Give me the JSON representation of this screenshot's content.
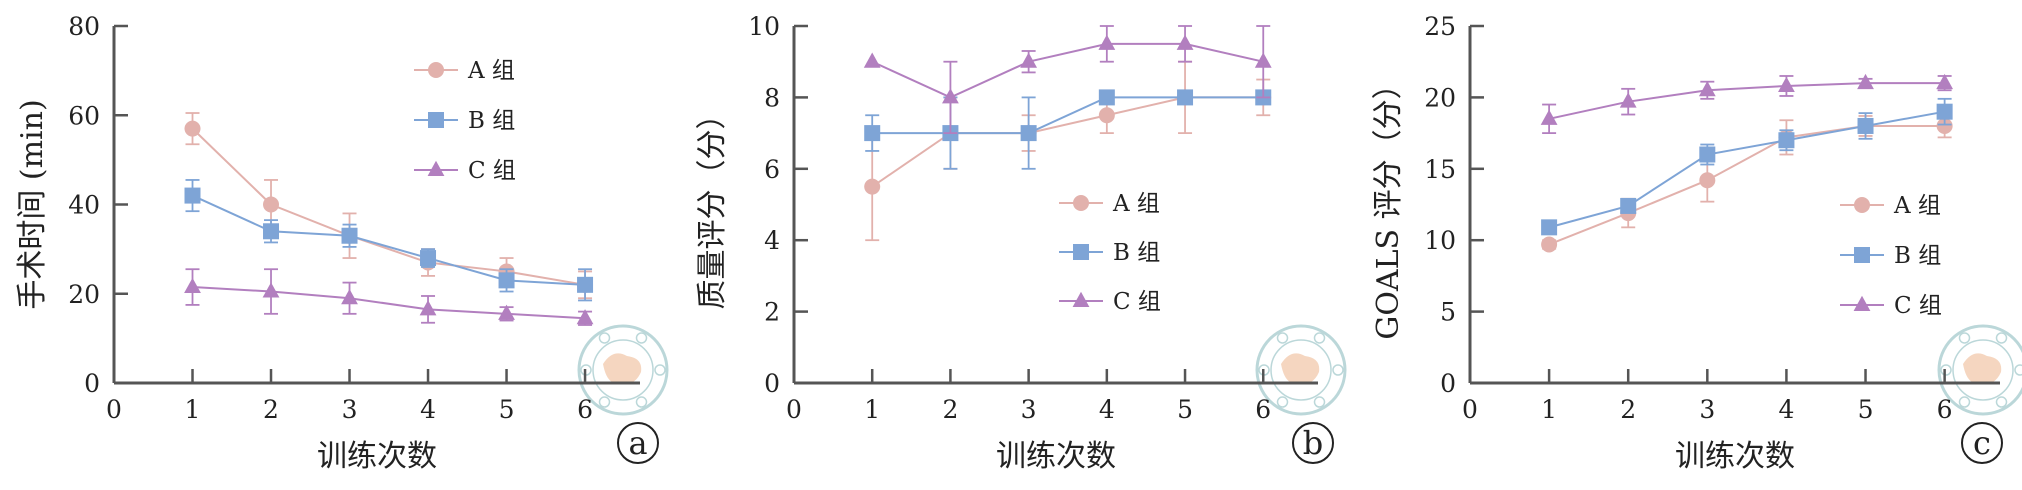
{
  "colors": {
    "A": "#e2b1ac",
    "B": "#7ea4d6",
    "C": "#b27fbf",
    "axis": "#555555",
    "watermark": "#9fc7c9",
    "watermark_center": "#f2c6a6"
  },
  "legend": {
    "A": "A 组",
    "B": "B 组",
    "C": "C 组"
  },
  "chart_data": [
    {
      "type": "line",
      "panel_label": "a",
      "xlabel": "训练次数",
      "ylabel": "手术时间 (min)",
      "xlim": [
        0,
        6.7
      ],
      "ylim": [
        0,
        80
      ],
      "x_ticks": [
        0,
        1,
        2,
        3,
        4,
        5,
        6
      ],
      "y_ticks": [
        0,
        20,
        40,
        60,
        80
      ],
      "legend_position": "top-right",
      "x": [
        1,
        2,
        3,
        4,
        5,
        6
      ],
      "series": [
        {
          "name": "A 组",
          "key": "A",
          "marker": "circle",
          "values": [
            57,
            40,
            33,
            27,
            25,
            22
          ],
          "errors": [
            3.5,
            5.5,
            5,
            3,
            3,
            3
          ]
        },
        {
          "name": "B 组",
          "key": "B",
          "marker": "square",
          "values": [
            42,
            34,
            33,
            28,
            23,
            22
          ],
          "errors": [
            3.5,
            2.5,
            2.5,
            2,
            2.5,
            3.5
          ]
        },
        {
          "name": "C 组",
          "key": "C",
          "marker": "triangle",
          "values": [
            21.5,
            20.5,
            19,
            16.5,
            15.5,
            14.5
          ],
          "errors": [
            4,
            5,
            3.5,
            3,
            1.5,
            1.5
          ]
        }
      ]
    },
    {
      "type": "line",
      "panel_label": "b",
      "xlabel": "训练次数",
      "ylabel": "质量评分（分）",
      "xlim": [
        0,
        6.7
      ],
      "ylim": [
        0,
        10
      ],
      "x_ticks": [
        0,
        1,
        2,
        3,
        4,
        5,
        6
      ],
      "y_ticks": [
        0,
        2,
        4,
        6,
        8,
        10
      ],
      "legend_position": "center-right",
      "x": [
        1,
        2,
        3,
        4,
        5,
        6
      ],
      "series": [
        {
          "name": "A 组",
          "key": "A",
          "marker": "circle",
          "values": [
            5.5,
            7,
            7,
            7.5,
            8,
            8
          ],
          "errors": [
            1.5,
            1,
            0.5,
            0.5,
            1,
            0.5
          ]
        },
        {
          "name": "B 组",
          "key": "B",
          "marker": "square",
          "values": [
            7,
            7,
            7,
            8,
            8,
            8
          ],
          "errors": [
            0.5,
            1,
            1,
            0,
            0,
            0
          ]
        },
        {
          "name": "C 组",
          "key": "C",
          "marker": "triangle",
          "values": [
            9,
            8,
            9,
            9.5,
            9.5,
            9
          ],
          "errors": [
            0,
            1,
            0.3,
            0.5,
            0.5,
            1
          ]
        }
      ]
    },
    {
      "type": "line",
      "panel_label": "c",
      "xlabel": "训练次数",
      "ylabel": "GOALS 评分（分）",
      "xlim": [
        0,
        6.7
      ],
      "ylim": [
        0,
        25
      ],
      "x_ticks": [
        0,
        1,
        2,
        3,
        4,
        5,
        6
      ],
      "y_ticks": [
        0,
        5,
        10,
        15,
        20,
        25
      ],
      "legend_position": "center-right",
      "x": [
        1,
        2,
        3,
        4,
        5,
        6
      ],
      "series": [
        {
          "name": "A 组",
          "key": "A",
          "marker": "circle",
          "values": [
            9.7,
            11.9,
            14.2,
            17.2,
            18,
            18
          ],
          "errors": [
            0.3,
            1,
            1.5,
            1.2,
            0.7,
            0.8
          ]
        },
        {
          "name": "B 组",
          "key": "B",
          "marker": "square",
          "values": [
            10.9,
            12.4,
            16,
            17,
            18,
            19
          ],
          "errors": [
            0.4,
            0.4,
            0.7,
            0.7,
            0.9,
            0.9
          ]
        },
        {
          "name": "C 组",
          "key": "C",
          "marker": "triangle",
          "values": [
            18.5,
            19.7,
            20.5,
            20.8,
            21,
            21
          ],
          "errors": [
            1,
            0.9,
            0.6,
            0.7,
            0.3,
            0.5
          ]
        }
      ]
    }
  ]
}
